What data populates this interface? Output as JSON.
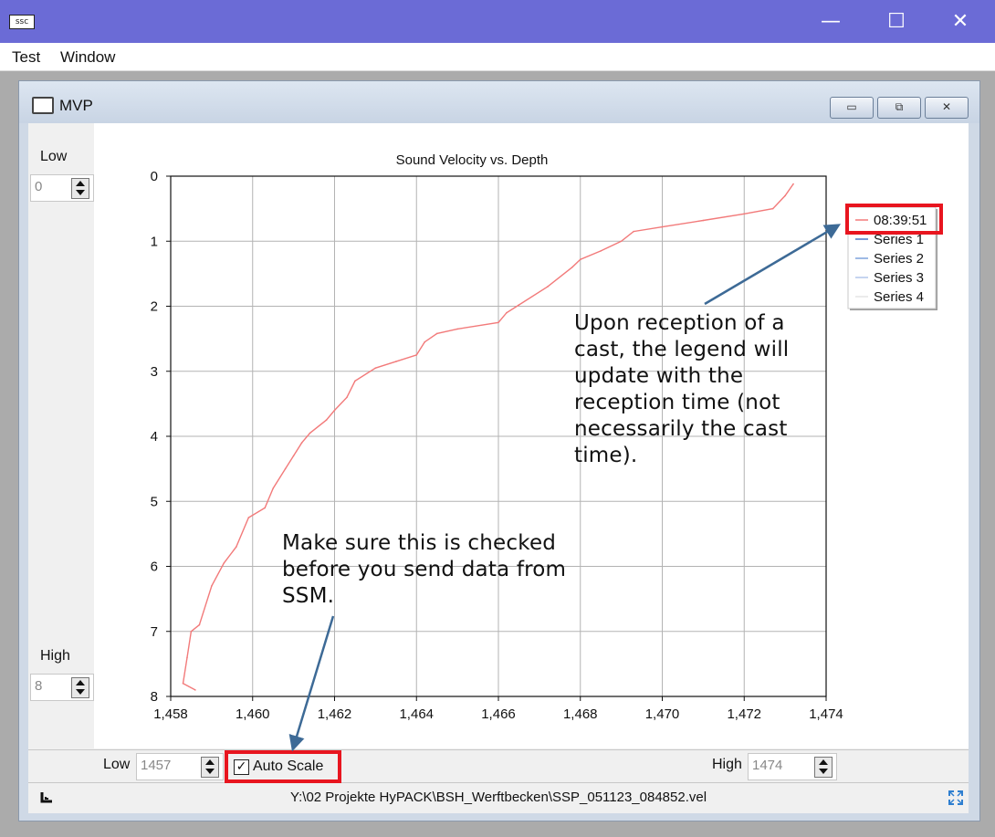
{
  "window": {
    "icon": "app-icon",
    "icon_text": "ssc",
    "minimize_symbol": "—",
    "maximize_symbol": "☐",
    "close_symbol": "✕",
    "titlebar_color": "#6b6bd6"
  },
  "menu": {
    "items": [
      "Test",
      "Window"
    ]
  },
  "mdi_child": {
    "title": "MVP",
    "icon": "printer-icon",
    "buttons": {
      "minimize": "▭",
      "restore": "⧉",
      "close": "✕"
    }
  },
  "depth_range": {
    "low_label": "Low",
    "low_value": "0",
    "high_label": "High",
    "high_value": "8"
  },
  "velocity_range": {
    "low_label": "Low",
    "low_value": "1457",
    "high_label": "High",
    "high_value": "1474"
  },
  "auto_scale": {
    "label": "Auto Scale",
    "checked": true,
    "check_mark": "✓"
  },
  "status": {
    "file_path": "Y:\\02 Projekte HyPACK\\BSH_Werftbecken\\SSP_051123_084852.vel"
  },
  "annotations": {
    "legend_note": "Upon reception of a cast, the legend will update with the reception time (not necessarily the cast time).",
    "autoscale_note": "Make sure this is checked before you send data from SSM.",
    "highlight_color": "#e8151f"
  },
  "chart_data": {
    "type": "line",
    "title": "Sound Velocity vs. Depth",
    "xlabel": "",
    "ylabel": "",
    "xlim": [
      1458,
      1474
    ],
    "ylim": [
      0,
      8
    ],
    "y_inverted": true,
    "grid": true,
    "x_ticks": [
      "1,458",
      "1,460",
      "1,462",
      "1,464",
      "1,466",
      "1,468",
      "1,470",
      "1,472",
      "1,474"
    ],
    "y_ticks": [
      "0",
      "1",
      "2",
      "3",
      "4",
      "5",
      "6",
      "7",
      "8"
    ],
    "legend_position": "top-right",
    "legend": [
      "08:39:51",
      "Series 1",
      "Series 2",
      "Series 3",
      "Series 4"
    ],
    "legend_colors": [
      "#f27a7a",
      "#4a78c8",
      "#7ea2dc",
      "#b2c7ea",
      "#e4e4e4"
    ],
    "series": [
      {
        "name": "08:39:51",
        "color": "#f27a7a",
        "points": [
          [
            1473.2,
            0.12
          ],
          [
            1473.0,
            0.3
          ],
          [
            1472.7,
            0.5
          ],
          [
            1472.0,
            0.58
          ],
          [
            1471.0,
            0.68
          ],
          [
            1470.0,
            0.78
          ],
          [
            1469.3,
            0.85
          ],
          [
            1469.0,
            1.0
          ],
          [
            1468.5,
            1.15
          ],
          [
            1468.0,
            1.28
          ],
          [
            1467.8,
            1.4
          ],
          [
            1467.2,
            1.7
          ],
          [
            1466.5,
            1.98
          ],
          [
            1466.2,
            2.1
          ],
          [
            1466.0,
            2.25
          ],
          [
            1465.0,
            2.35
          ],
          [
            1464.5,
            2.42
          ],
          [
            1464.2,
            2.55
          ],
          [
            1464.0,
            2.75
          ],
          [
            1463.5,
            2.85
          ],
          [
            1463.0,
            2.95
          ],
          [
            1462.5,
            3.15
          ],
          [
            1462.3,
            3.4
          ],
          [
            1462.0,
            3.6
          ],
          [
            1461.8,
            3.75
          ],
          [
            1461.4,
            3.95
          ],
          [
            1461.2,
            4.1
          ],
          [
            1461.0,
            4.3
          ],
          [
            1460.8,
            4.5
          ],
          [
            1460.5,
            4.8
          ],
          [
            1460.3,
            5.1
          ],
          [
            1459.9,
            5.25
          ],
          [
            1459.6,
            5.7
          ],
          [
            1459.3,
            5.95
          ],
          [
            1459.0,
            6.3
          ],
          [
            1458.7,
            6.9
          ],
          [
            1458.5,
            7.0
          ],
          [
            1458.4,
            7.4
          ],
          [
            1458.3,
            7.8
          ],
          [
            1458.6,
            7.9
          ]
        ]
      }
    ]
  }
}
